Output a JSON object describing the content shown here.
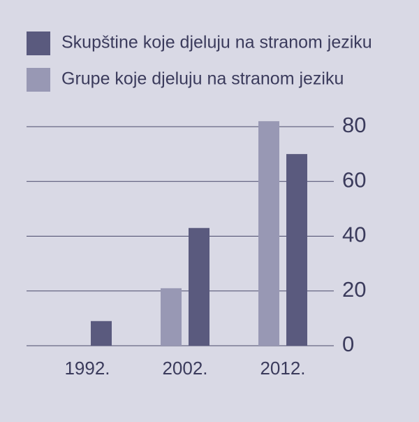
{
  "chart_data": {
    "type": "bar",
    "categories": [
      "1992.",
      "2002.",
      "2012."
    ],
    "series": [
      {
        "name": "Skupštine koje djeluju na stranom jeziku",
        "color": "#5a5a7e",
        "values": [
          9,
          43,
          70
        ]
      },
      {
        "name": "Grupe koje djeluju na stranom jeziku",
        "color": "#9898b4",
        "values": [
          null,
          21,
          82
        ]
      }
    ],
    "ylim": [
      0,
      80
    ],
    "yticks": [
      0,
      20,
      40,
      60,
      80
    ],
    "grid": true,
    "y_axis_side": "right"
  }
}
